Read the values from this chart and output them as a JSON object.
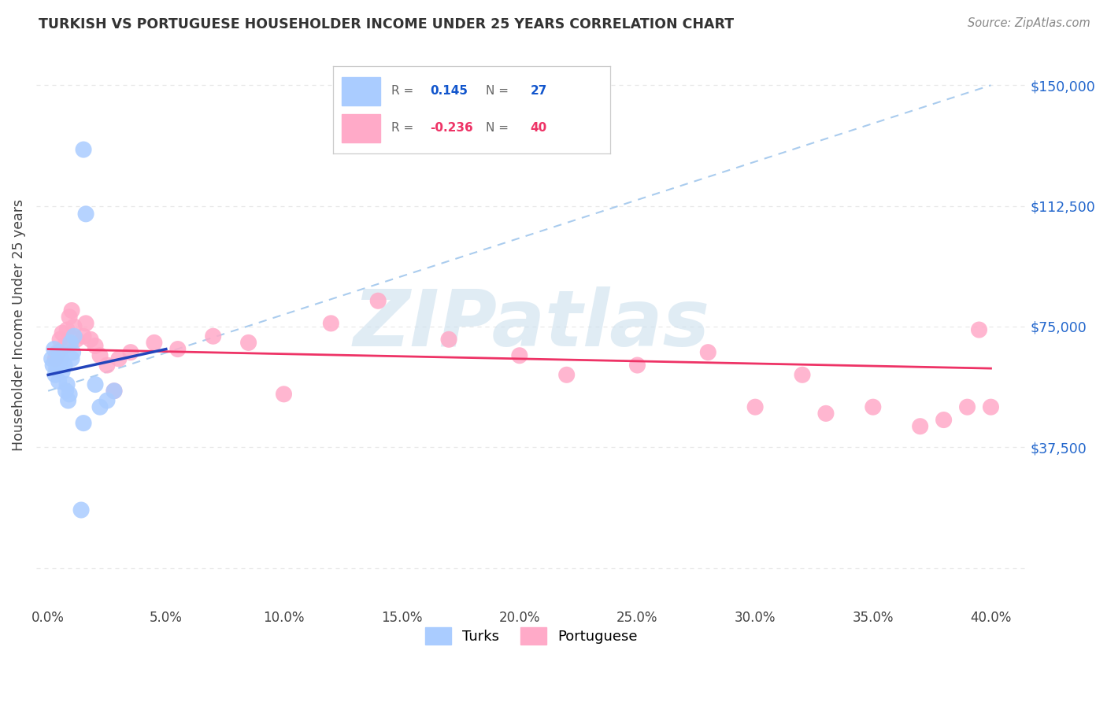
{
  "title": "TURKISH VS PORTUGUESE HOUSEHOLDER INCOME UNDER 25 YEARS CORRELATION CHART",
  "source": "Source: ZipAtlas.com",
  "ylabel": "Householder Income Under 25 years",
  "xtick_vals": [
    0.0,
    5.0,
    10.0,
    15.0,
    20.0,
    25.0,
    30.0,
    35.0,
    40.0
  ],
  "xtick_labels": [
    "0.0%",
    "5.0%",
    "10.0%",
    "15.0%",
    "20.0%",
    "25.0%",
    "30.0%",
    "35.0%",
    "40.0%"
  ],
  "ytick_vals": [
    0,
    37500,
    75000,
    112500,
    150000
  ],
  "ytick_labels_right": [
    "",
    "$37,500",
    "$75,000",
    "$112,500",
    "$150,000"
  ],
  "xmin": -0.5,
  "xmax": 41.5,
  "ymin": -12000,
  "ymax": 163000,
  "turks_color": "#aaccff",
  "portuguese_color": "#ffaac8",
  "turks_line_color": "#2244bb",
  "portuguese_line_color": "#ee3366",
  "dashed_line_color": "#aaccee",
  "turks_R": 0.145,
  "turks_N": 27,
  "portuguese_R": -0.236,
  "portuguese_N": 40,
  "watermark_text": "ZIPatlas",
  "watermark_color": "#cce0ee",
  "grid_color": "#e8e8e8",
  "turks_x": [
    0.15,
    0.2,
    0.25,
    0.3,
    0.35,
    0.4,
    0.45,
    0.5,
    0.55,
    0.6,
    0.7,
    0.75,
    0.8,
    0.85,
    0.9,
    0.95,
    1.0,
    1.05,
    1.1,
    1.5,
    1.6,
    2.0,
    2.2,
    2.5,
    2.8,
    1.5,
    1.4
  ],
  "turks_y": [
    65000,
    63000,
    68000,
    60000,
    62000,
    64000,
    58000,
    67000,
    65000,
    61000,
    63000,
    55000,
    57000,
    52000,
    54000,
    70000,
    65000,
    67000,
    72000,
    130000,
    110000,
    57000,
    50000,
    52000,
    55000,
    45000,
    18000
  ],
  "portuguese_x": [
    0.3,
    0.4,
    0.5,
    0.6,
    0.7,
    0.8,
    0.9,
    1.0,
    1.1,
    1.2,
    1.5,
    1.6,
    1.8,
    2.0,
    2.2,
    2.5,
    2.8,
    3.0,
    3.5,
    4.5,
    5.5,
    7.0,
    8.5,
    10.0,
    12.0,
    14.0,
    17.0,
    20.0,
    22.0,
    25.0,
    28.0,
    30.0,
    32.0,
    33.0,
    35.0,
    37.0,
    38.0,
    39.0,
    39.5,
    40.0
  ],
  "portuguese_y": [
    65000,
    67000,
    71000,
    73000,
    69000,
    74000,
    78000,
    80000,
    75000,
    71000,
    72000,
    76000,
    71000,
    69000,
    66000,
    63000,
    55000,
    65000,
    67000,
    70000,
    68000,
    72000,
    70000,
    54000,
    76000,
    83000,
    71000,
    66000,
    60000,
    63000,
    67000,
    50000,
    60000,
    48000,
    50000,
    44000,
    46000,
    50000,
    74000,
    50000
  ]
}
